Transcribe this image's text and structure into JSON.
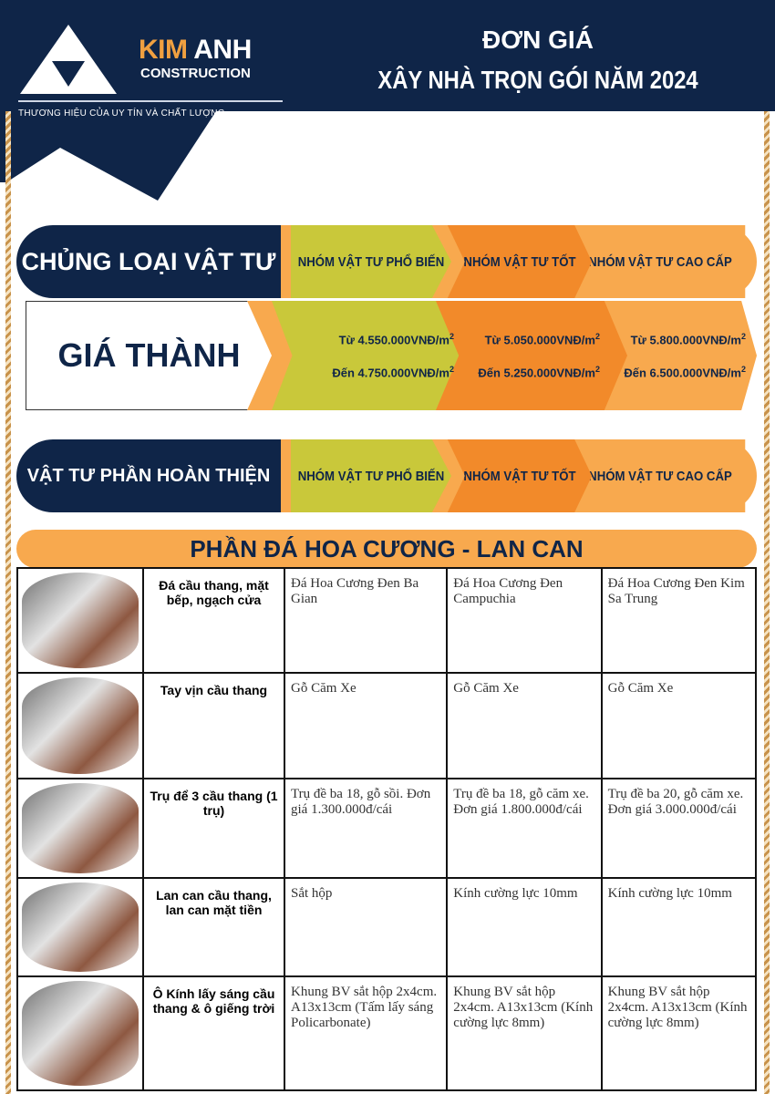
{
  "logo": {
    "brand_a": "KIM",
    "brand_b": "ANH",
    "sub": "CONSTRUCTION",
    "tagline": "THƯƠNG HIỆU CỦA UY TÍN VÀ CHẤT LƯỢNG"
  },
  "title": {
    "line1": "ĐƠN GIÁ",
    "line2": "XÂY NHÀ TRỌN GÓI NĂM 2024"
  },
  "material_row": {
    "label": "CHỦNG LOẠI VẬT TƯ",
    "groups": [
      "NHÓM VẬT TƯ PHỔ BIẾN",
      "NHÓM VẬT TƯ TỐT",
      "NHÓM VẬT TƯ CAO CẤP"
    ]
  },
  "price_row": {
    "label": "GIÁ THÀNH",
    "unit_sup": "2",
    "prices": [
      {
        "from": "Từ 4.550.000VNĐ/m",
        "to": "Đến 4.750.000VNĐ/m"
      },
      {
        "from": "Từ 5.050.000VNĐ/m",
        "to": "Đến 5.250.000VNĐ/m"
      },
      {
        "from": "Từ 5.800.000VNĐ/m",
        "to": "Đến 6.500.000VNĐ/m"
      }
    ]
  },
  "finish_row": {
    "label": "VẬT TƯ PHẦN HOÀN THIỆN",
    "groups": [
      "NHÓM VẬT TƯ PHỔ BIẾN",
      "NHÓM VẬT TƯ TỐT",
      "NHÓM VẬT TƯ CAO CẤP"
    ]
  },
  "section": {
    "title": "PHẦN ĐÁ HOA CƯƠNG - LAN CAN"
  },
  "colors": {
    "navy": "#0f2548",
    "green": "#c9c83a",
    "orange": "#f28a2a",
    "light_orange": "#f8a94e"
  },
  "table": [
    {
      "item": "Đá cầu thang, mặt bếp, ngạch cửa",
      "values": [
        "Đá Hoa Cương Đen Ba Gian",
        "Đá Hoa Cương Đen Campuchia",
        "Đá Hoa Cương Đen Kim Sa Trung"
      ]
    },
    {
      "item": "Tay vịn cầu thang",
      "values": [
        "Gỗ Căm Xe",
        "Gỗ Căm Xe",
        "Gỗ Căm Xe"
      ]
    },
    {
      "item": "Trụ để 3 cầu thang (1 trụ)",
      "values": [
        "Trụ đề ba 18, gỗ sồi. Đơn giá 1.300.000đ/cái",
        "Trụ đề ba 18, gỗ căm xe. Đơn giá 1.800.000đ/cái",
        "Trụ đề ba 20, gỗ căm xe. Đơn giá 3.000.000đ/cái"
      ]
    },
    {
      "item": "Lan can cầu thang, lan can mặt tiền",
      "values": [
        "Sắt hộp",
        "Kính cường lực 10mm",
        "Kính cường lực 10mm"
      ]
    },
    {
      "item": "Ô Kính lấy sáng cầu thang & ô giếng trời",
      "values": [
        "Khung BV sắt hộp 2x4cm. A13x13cm (Tấm lấy sáng Policarbonate)",
        "Khung BV sắt hộp 2x4cm. A13x13cm (Kính cường lực 8mm)",
        "Khung BV sắt hộp 2x4cm. A13x13cm (Kính cường lực 8mm)"
      ]
    }
  ]
}
